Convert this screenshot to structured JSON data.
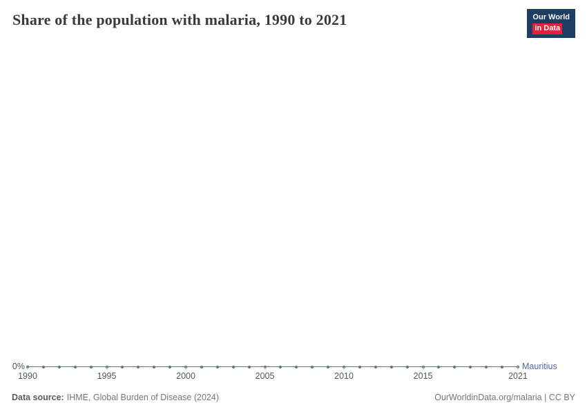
{
  "header": {
    "title": "Share of the population with malaria, 1990 to 2021"
  },
  "logo": {
    "line1": "Our World",
    "line2": "in Data",
    "bg_color": "#1D3D63",
    "accent_color": "#E0233A"
  },
  "chart": {
    "y_zero_label": "0%",
    "entity_label": "Mauritius",
    "line_color": "#4C6A9C"
  },
  "footer": {
    "source_label": "Data source:",
    "source_text": "IHME, Global Burden of Disease (2024)",
    "credit": "OurWorldinData.org/malaria | CC BY"
  },
  "chart_data": {
    "type": "line",
    "title": "Share of the population with malaria, 1990 to 2021",
    "x": [
      1990,
      1991,
      1992,
      1993,
      1994,
      1995,
      1996,
      1997,
      1998,
      1999,
      2000,
      2001,
      2002,
      2003,
      2004,
      2005,
      2006,
      2007,
      2008,
      2009,
      2010,
      2011,
      2012,
      2013,
      2014,
      2015,
      2016,
      2017,
      2018,
      2019,
      2020,
      2021
    ],
    "series": [
      {
        "name": "Mauritius",
        "values": [
          0,
          0,
          0,
          0,
          0,
          0,
          0,
          0,
          0,
          0,
          0,
          0,
          0,
          0,
          0,
          0,
          0,
          0,
          0,
          0,
          0,
          0,
          0,
          0,
          0,
          0,
          0,
          0,
          0,
          0,
          0,
          0
        ]
      }
    ],
    "x_ticks": [
      1990,
      1995,
      2000,
      2005,
      2010,
      2015,
      2021
    ],
    "x_range": [
      1990,
      2021
    ],
    "xlabel": "",
    "ylabel": "",
    "y_tick_labels": [
      "0%"
    ],
    "unit": "%",
    "grid": false,
    "legend_position": "right-of-line-end"
  }
}
